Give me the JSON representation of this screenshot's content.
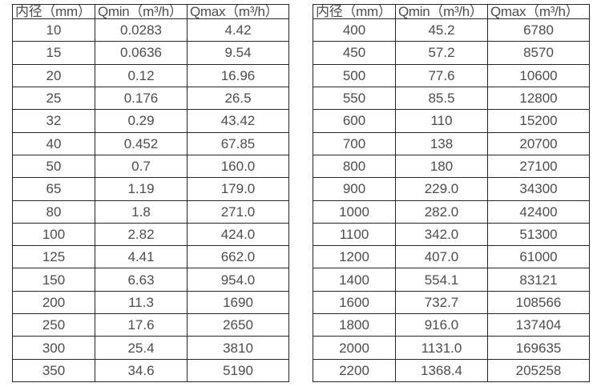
{
  "page": {
    "background": "#ffffff",
    "text_color": "#4d4d4d",
    "border_color": "#262626"
  },
  "tables": [
    {
      "name": "flow-rate-table-small-diameters",
      "headers": [
        "内径（mm）",
        "Qmin（m³/h）",
        "Qmax（m³/h）"
      ],
      "rows": [
        [
          "10",
          "0.0283",
          "4.42"
        ],
        [
          "15",
          "0.0636",
          "9.54"
        ],
        [
          "20",
          "0.12",
          "16.96"
        ],
        [
          "25",
          "0.176",
          "26.5"
        ],
        [
          "32",
          "0.29",
          "43.42"
        ],
        [
          "40",
          "0.452",
          "67.85"
        ],
        [
          "50",
          "0.7",
          "160.0"
        ],
        [
          "65",
          "1.19",
          "179.0"
        ],
        [
          "80",
          "1.8",
          "271.0"
        ],
        [
          "100",
          "2.82",
          "424.0"
        ],
        [
          "125",
          "4.41",
          "662.0"
        ],
        [
          "150",
          "6.63",
          "954.0"
        ],
        [
          "200",
          "11.3",
          "1690"
        ],
        [
          "250",
          "17.6",
          "2650"
        ],
        [
          "300",
          "25.4",
          "3810"
        ],
        [
          "350",
          "34.6",
          "5190"
        ]
      ]
    },
    {
      "name": "flow-rate-table-large-diameters",
      "headers": [
        "内径（mm）",
        "Qmin（m³/h）",
        "Qmax（m³/h）"
      ],
      "rows": [
        [
          "400",
          "45.2",
          "6780"
        ],
        [
          "450",
          "57.2",
          "8570"
        ],
        [
          "500",
          "77.6",
          "10600"
        ],
        [
          "550",
          "85.5",
          "12800"
        ],
        [
          "600",
          "110",
          "15200"
        ],
        [
          "700",
          "138",
          "20700"
        ],
        [
          "800",
          "180",
          "27100"
        ],
        [
          "900",
          "229.0",
          "34300"
        ],
        [
          "1000",
          "282.0",
          "42400"
        ],
        [
          "1100",
          "342.0",
          "51300"
        ],
        [
          "1200",
          "407.0",
          "61000"
        ],
        [
          "1400",
          "554.1",
          "83121"
        ],
        [
          "1600",
          "732.7",
          "108566"
        ],
        [
          "1800",
          "916.0",
          "137404"
        ],
        [
          "2000",
          "1131.0",
          "169635"
        ],
        [
          "2200",
          "1368.4",
          "205258"
        ]
      ]
    }
  ]
}
